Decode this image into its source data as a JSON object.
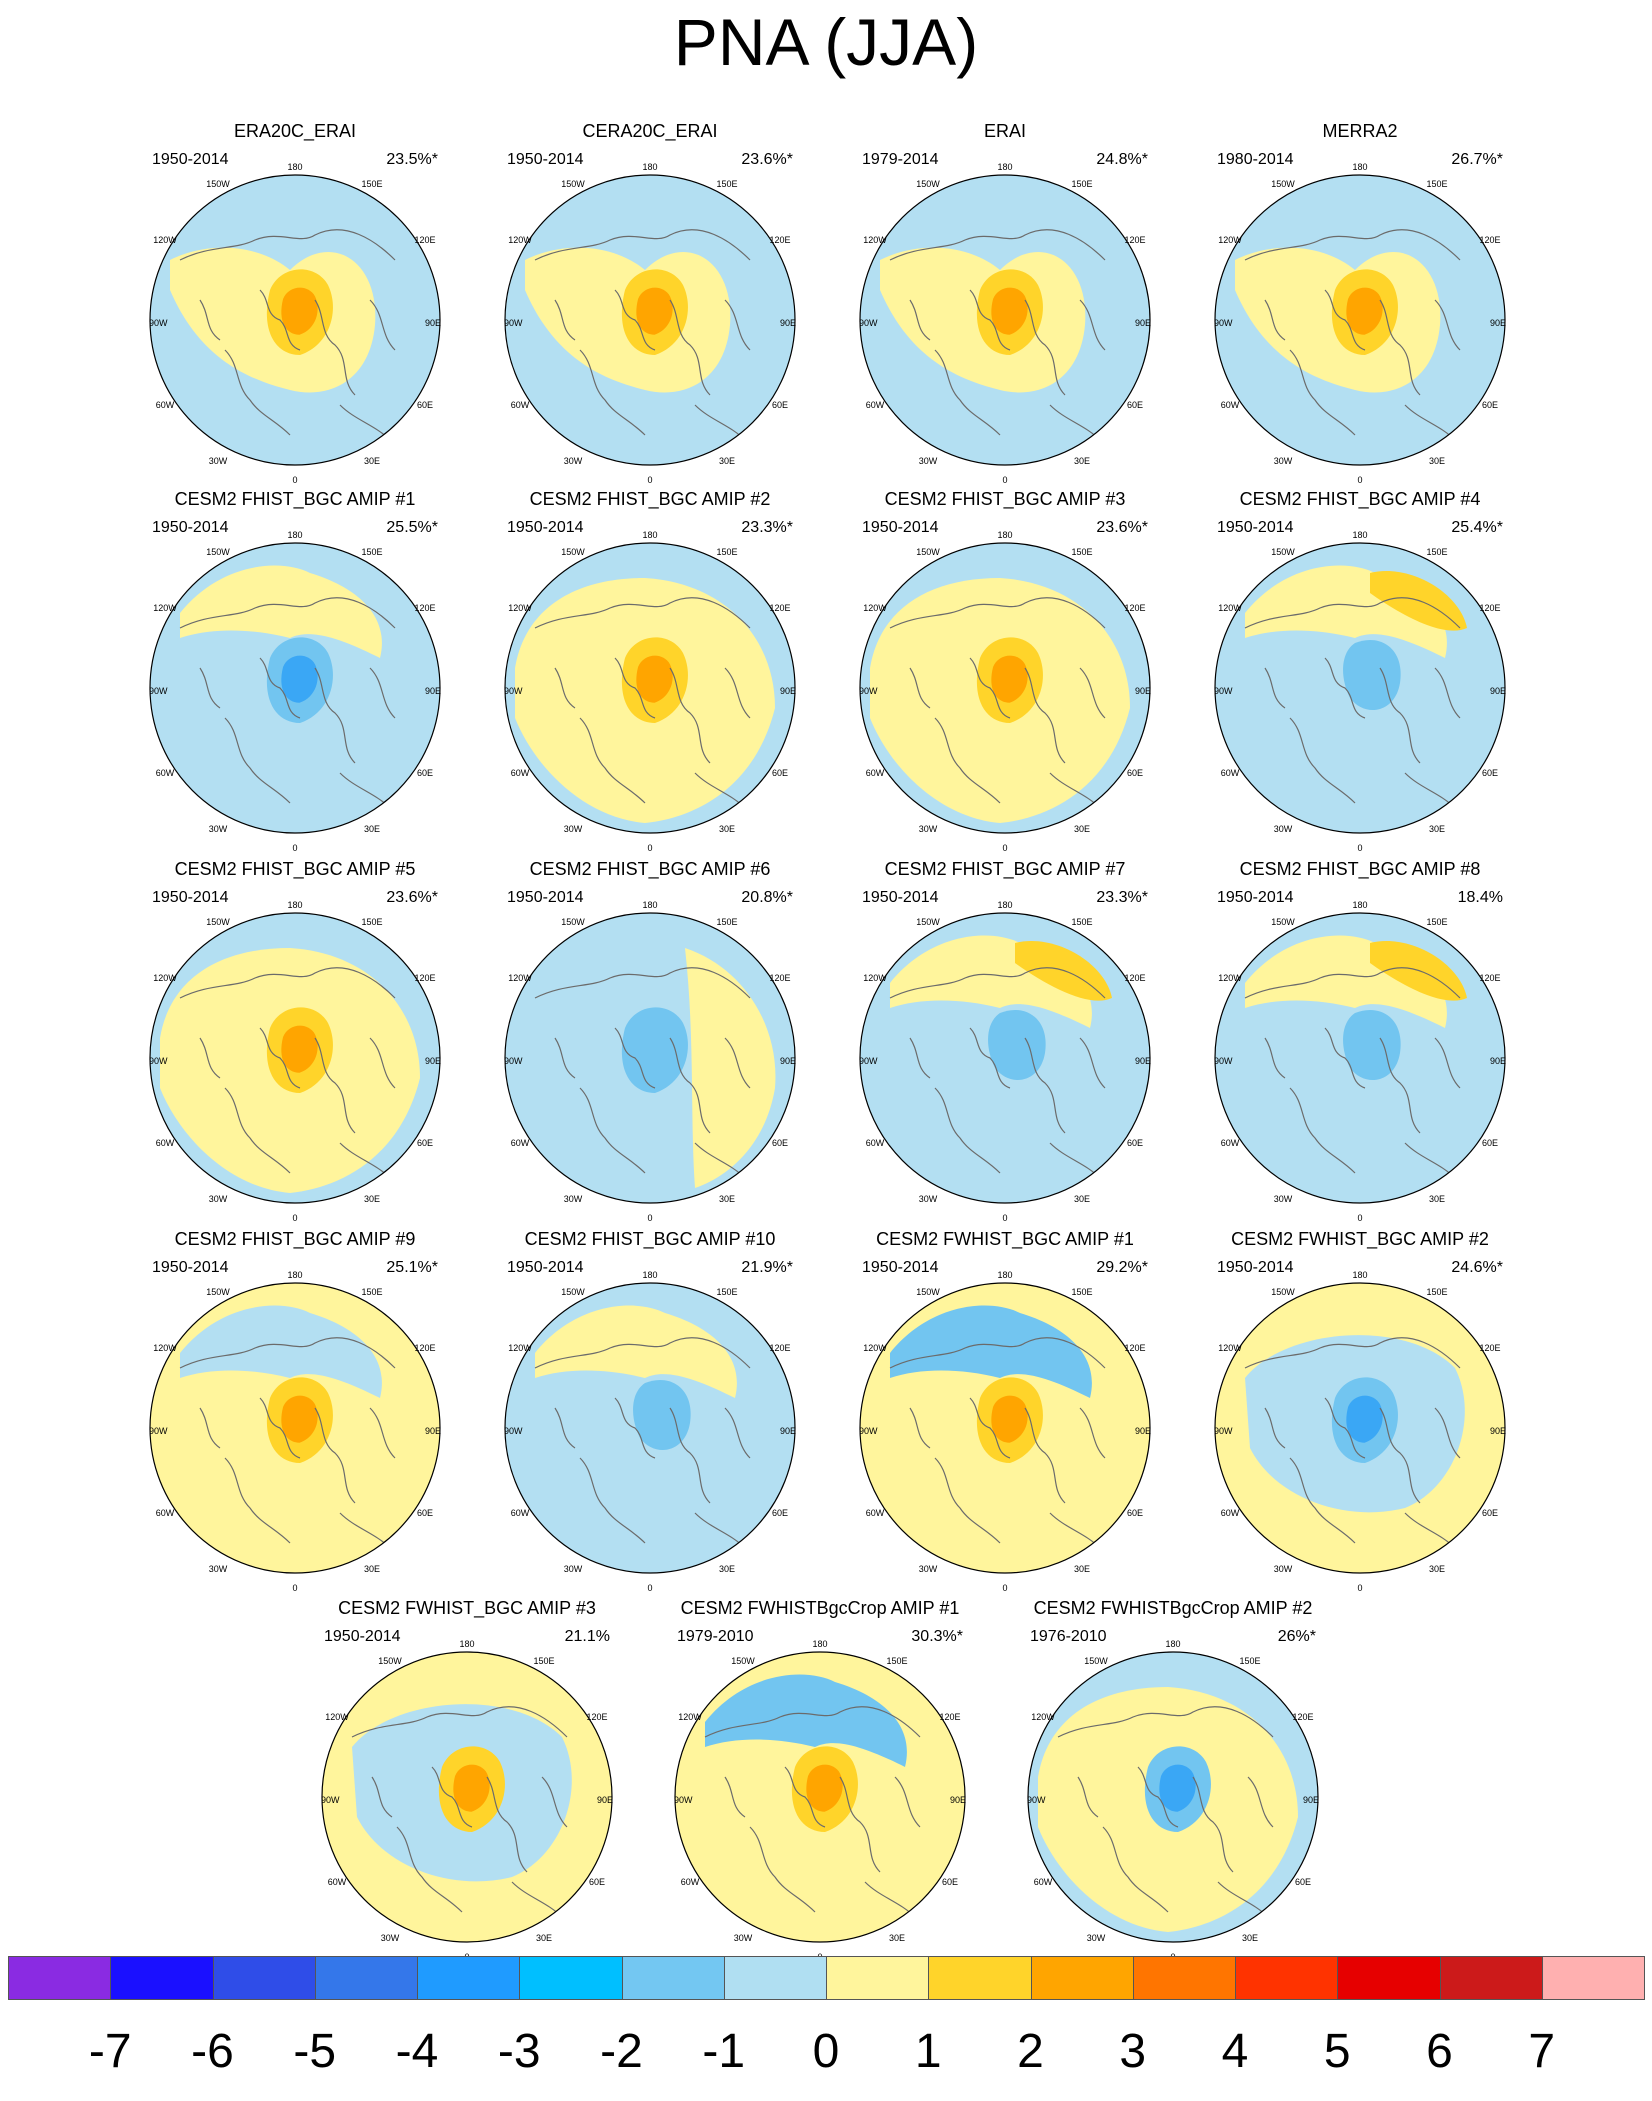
{
  "title": "PNA (JJA)",
  "colors": {
    "light_blue": "#b3dff2",
    "mid_blue": "#72c5f0",
    "blue": "#3aa7f5",
    "deep_blue": "#2e90f0",
    "light_yellow": "#fff59c",
    "yellow_orange": "#ffd42a",
    "orange": "#ffa500",
    "dark_orange": "#ff7700",
    "coast": "#6b6b6b"
  },
  "map_labels": {
    "lon_top": "180",
    "lon_150w": "150W",
    "lon_150e": "150E",
    "lon_120w": "120W",
    "lon_120e": "120E",
    "lon_90w": "90W",
    "lon_90e": "90E",
    "lon_60w": "60W",
    "lon_60e": "60E",
    "lon_30w": "30W",
    "lon_30e": "30E",
    "lon_bottom": "0"
  },
  "panels": [
    {
      "title": "ERA20C_ERAI",
      "period": "1950-2014",
      "variance": "23.5%*",
      "background": "light_blue",
      "blobs": [
        {
          "at": "crescent band",
          "level": "light_yellow"
        },
        {
          "at": "pole",
          "level": "yellow_orange"
        },
        {
          "at": "pole",
          "level": "orange"
        }
      ]
    },
    {
      "title": "CERA20C_ERAI",
      "period": "1950-2014",
      "variance": "23.6%*",
      "background": "light_blue",
      "blobs": [
        {
          "at": "crescent band",
          "level": "light_yellow"
        },
        {
          "at": "pole",
          "level": "yellow_orange"
        },
        {
          "at": "pole",
          "level": "orange"
        }
      ]
    },
    {
      "title": "ERAI",
      "period": "1979-2014",
      "variance": "24.8%*",
      "background": "light_blue",
      "blobs": [
        {
          "at": "crescent band",
          "level": "light_yellow"
        },
        {
          "at": "pole",
          "level": "yellow_orange"
        },
        {
          "at": "pole",
          "level": "orange"
        }
      ]
    },
    {
      "title": "MERRA2",
      "period": "1980-2014",
      "variance": "26.7%*",
      "background": "light_blue",
      "blobs": [
        {
          "at": "crescent band",
          "level": "light_yellow"
        },
        {
          "at": "pole",
          "level": "yellow_orange"
        },
        {
          "at": "pole",
          "level": "orange"
        }
      ]
    },
    {
      "title": "CESM2 FHIST_BGC AMIP #1",
      "period": "1950-2014",
      "variance": "25.5%*",
      "background": "light_blue",
      "blobs": [
        {
          "at": "top band",
          "level": "light_yellow"
        },
        {
          "at": "pole",
          "level": "mid_blue"
        },
        {
          "at": "pole",
          "level": "blue"
        }
      ]
    },
    {
      "title": "CESM2 FHIST_BGC AMIP #2",
      "period": "1950-2014",
      "variance": "23.3%*",
      "background": "light_blue",
      "blobs": [
        {
          "at": "outer band",
          "level": "light_yellow"
        },
        {
          "at": "pole",
          "level": "yellow_orange"
        },
        {
          "at": "pole",
          "level": "orange"
        }
      ]
    },
    {
      "title": "CESM2 FHIST_BGC AMIP #3",
      "period": "1950-2014",
      "variance": "23.6%*",
      "background": "light_blue",
      "blobs": [
        {
          "at": "outer band",
          "level": "light_yellow"
        },
        {
          "at": "pole",
          "level": "yellow_orange"
        },
        {
          "at": "pole",
          "level": "orange"
        }
      ]
    },
    {
      "title": "CESM2 FHIST_BGC AMIP #4",
      "period": "1950-2014",
      "variance": "25.4%*",
      "background": "light_blue",
      "blobs": [
        {
          "at": "top band",
          "level": "light_yellow"
        },
        {
          "at": "upper right",
          "level": "yellow_orange"
        },
        {
          "at": "near pole",
          "level": "mid_blue"
        }
      ]
    },
    {
      "title": "CESM2 FHIST_BGC AMIP #5",
      "period": "1950-2014",
      "variance": "23.6%*",
      "background": "light_blue",
      "blobs": [
        {
          "at": "outer band",
          "level": "light_yellow"
        },
        {
          "at": "pole",
          "level": "yellow_orange"
        },
        {
          "at": "pole",
          "level": "orange"
        }
      ]
    },
    {
      "title": "CESM2 FHIST_BGC AMIP #6",
      "period": "1950-2014",
      "variance": "20.8%*",
      "background": "light_blue",
      "blobs": [
        {
          "at": "right band",
          "level": "light_yellow"
        },
        {
          "at": "pole",
          "level": "mid_blue"
        }
      ]
    },
    {
      "title": "CESM2 FHIST_BGC AMIP #7",
      "period": "1950-2014",
      "variance": "23.3%*",
      "background": "light_blue",
      "blobs": [
        {
          "at": "top band",
          "level": "light_yellow"
        },
        {
          "at": "upper right",
          "level": "yellow_orange"
        },
        {
          "at": "near pole",
          "level": "mid_blue"
        }
      ]
    },
    {
      "title": "CESM2 FHIST_BGC AMIP #8",
      "period": "1950-2014",
      "variance": "18.4%",
      "background": "light_blue",
      "blobs": [
        {
          "at": "top band",
          "level": "light_yellow"
        },
        {
          "at": "upper right",
          "level": "yellow_orange"
        },
        {
          "at": "near pole",
          "level": "mid_blue"
        }
      ]
    },
    {
      "title": "CESM2 FHIST_BGC AMIP #9",
      "period": "1950-2014",
      "variance": "25.1%*",
      "background": "light_yellow",
      "blobs": [
        {
          "at": "top band",
          "level": "light_blue"
        },
        {
          "at": "pole",
          "level": "yellow_orange"
        },
        {
          "at": "pole",
          "level": "orange"
        }
      ]
    },
    {
      "title": "CESM2 FHIST_BGC AMIP #10",
      "period": "1950-2014",
      "variance": "21.9%*",
      "background": "light_blue",
      "blobs": [
        {
          "at": "top band",
          "level": "light_yellow"
        },
        {
          "at": "near pole",
          "level": "mid_blue"
        }
      ]
    },
    {
      "title": "CESM2 FWHIST_BGC AMIP #1",
      "period": "1950-2014",
      "variance": "29.2%*",
      "background": "light_yellow",
      "blobs": [
        {
          "at": "top band",
          "level": "mid_blue"
        },
        {
          "at": "pole",
          "level": "yellow_orange"
        },
        {
          "at": "pole",
          "level": "orange"
        }
      ]
    },
    {
      "title": "CESM2 FWHIST_BGC AMIP #2",
      "period": "1950-2014",
      "variance": "24.6%*",
      "background": "light_yellow",
      "blobs": [
        {
          "at": "center band",
          "level": "light_blue"
        },
        {
          "at": "pole",
          "level": "mid_blue"
        },
        {
          "at": "pole",
          "level": "blue"
        }
      ]
    },
    {
      "title": "CESM2 FWHIST_BGC AMIP #3",
      "period": "1950-2014",
      "variance": "21.1%",
      "background": "light_yellow",
      "blobs": [
        {
          "at": "center band",
          "level": "light_blue"
        },
        {
          "at": "pole",
          "level": "yellow_orange"
        },
        {
          "at": "pole",
          "level": "orange"
        }
      ]
    },
    {
      "title": "CESM2 FWHISTBgcCrop AMIP #1",
      "period": "1979-2010",
      "variance": "30.3%*",
      "background": "light_yellow",
      "blobs": [
        {
          "at": "top band",
          "level": "mid_blue"
        },
        {
          "at": "pole",
          "level": "yellow_orange"
        },
        {
          "at": "pole",
          "level": "orange"
        }
      ]
    },
    {
      "title": "CESM2 FWHISTBgcCrop AMIP #2",
      "period": "1976-2010",
      "variance": "26%*",
      "background": "light_blue",
      "blobs": [
        {
          "at": "outer band",
          "level": "light_yellow"
        },
        {
          "at": "pole",
          "level": "mid_blue"
        },
        {
          "at": "pole",
          "level": "blue"
        }
      ]
    }
  ],
  "colorbar": {
    "labels": [
      "-7",
      "-6",
      "-5",
      "-4",
      "-3",
      "-2",
      "-1",
      "0",
      "1",
      "2",
      "3",
      "4",
      "5",
      "6",
      "7"
    ],
    "colors": [
      "#8a2be2",
      "#1a10ff",
      "#2f4de8",
      "#3477ea",
      "#1f9bff",
      "#00bfff",
      "#73c7f2",
      "#b0dff2",
      "#fff59c",
      "#ffd42a",
      "#ffa500",
      "#ff7500",
      "#ff3300",
      "#e60000",
      "#cc1a1a",
      "#ffb0b0"
    ]
  }
}
